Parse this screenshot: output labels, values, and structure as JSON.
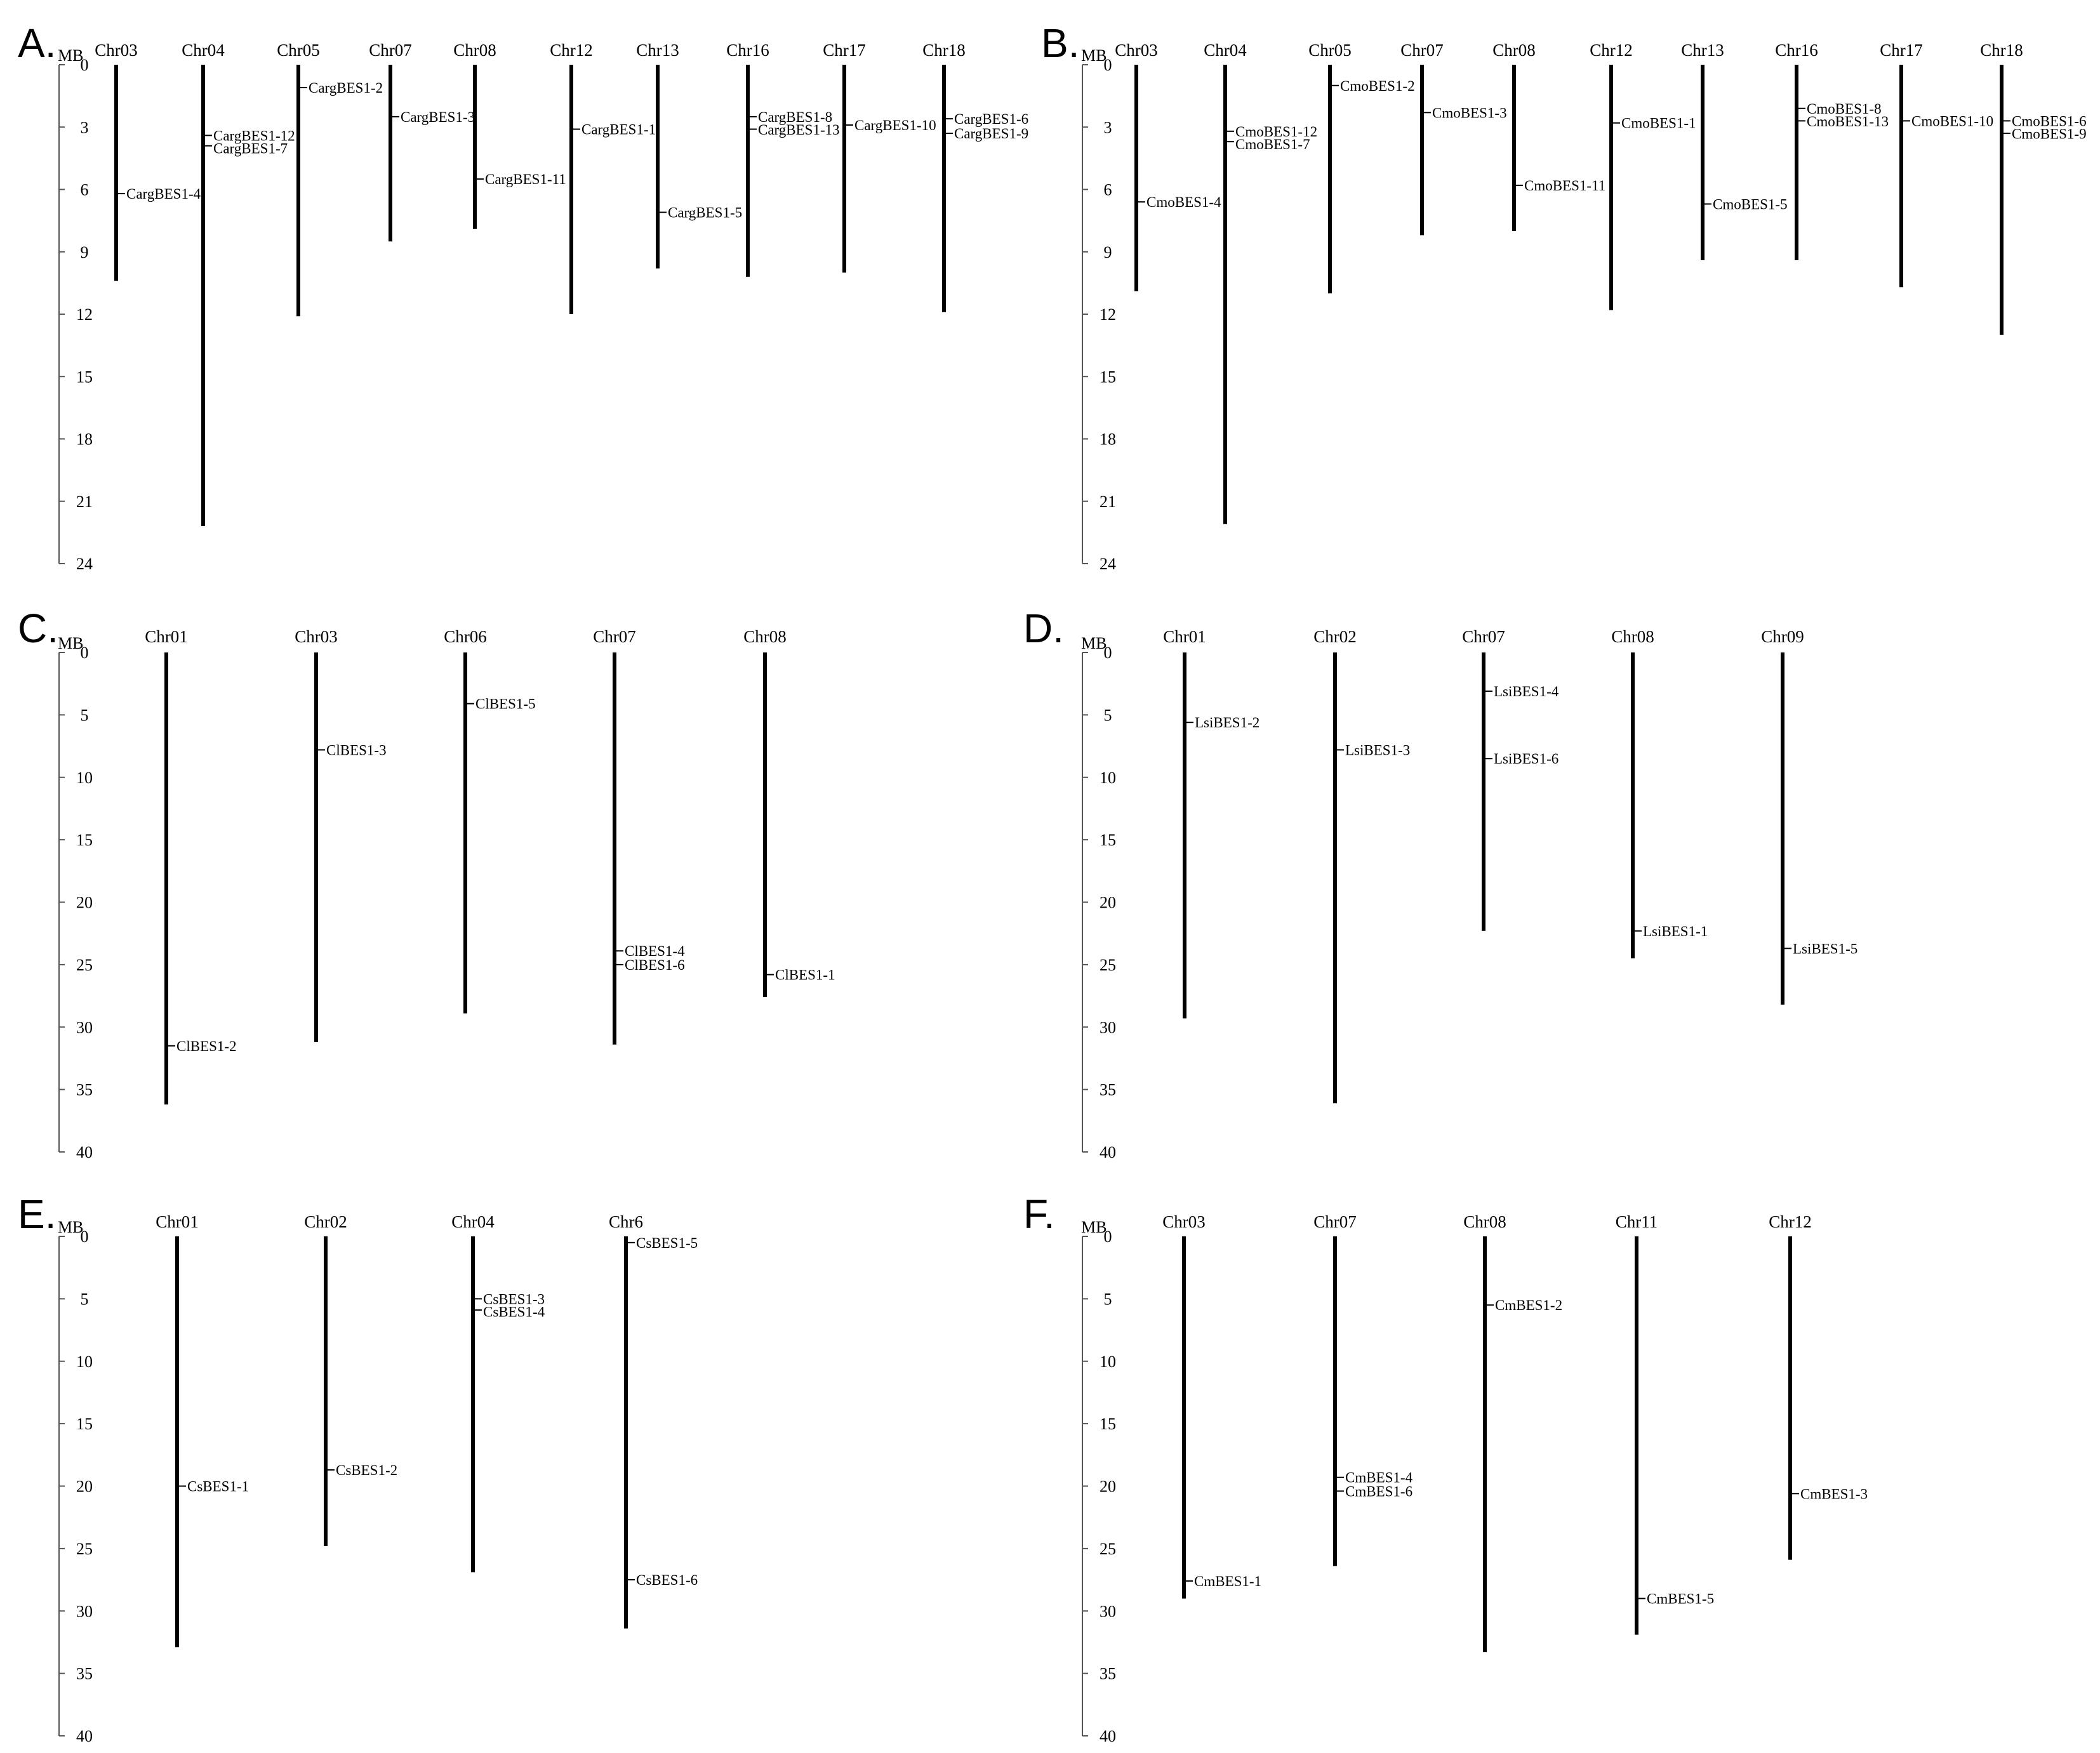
{
  "figure": {
    "panels": [
      {
        "label": "A.",
        "axis_unit": "MB",
        "axis_ticks": [
          0,
          3,
          6,
          9,
          12,
          15,
          18,
          21,
          24
        ],
        "chromosomes": [
          {
            "name": "Chr03",
            "length": 10.4,
            "genes": [
              {
                "name": "CargBES1-4",
                "pos": 6.2
              }
            ]
          },
          {
            "name": "Chr04",
            "length": 22.2,
            "genes": [
              {
                "name": "CargBES1-12",
                "pos": 3.4
              },
              {
                "name": "CargBES1-7",
                "pos": 3.9
              }
            ]
          },
          {
            "name": "Chr05",
            "length": 12.1,
            "genes": [
              {
                "name": "CargBES1-2",
                "pos": 1.1
              }
            ]
          },
          {
            "name": "Chr07",
            "length": 8.5,
            "genes": [
              {
                "name": "CargBES1-3",
                "pos": 2.5
              }
            ]
          },
          {
            "name": "Chr08",
            "length": 7.9,
            "genes": [
              {
                "name": "CargBES1-11",
                "pos": 5.5
              }
            ]
          },
          {
            "name": "Chr12",
            "length": 12.0,
            "genes": [
              {
                "name": "CargBES1-1",
                "pos": 3.1
              }
            ]
          },
          {
            "name": "Chr13",
            "length": 9.8,
            "genes": [
              {
                "name": "CargBES1-5",
                "pos": 7.1
              }
            ]
          },
          {
            "name": "Chr16",
            "length": 10.2,
            "genes": [
              {
                "name": "CargBES1-8",
                "pos": 2.5
              },
              {
                "name": "CargBES1-13",
                "pos": 3.1
              }
            ]
          },
          {
            "name": "Chr17",
            "length": 10.0,
            "genes": [
              {
                "name": "CargBES1-10",
                "pos": 2.9
              }
            ]
          },
          {
            "name": "Chr18",
            "length": 11.9,
            "genes": [
              {
                "name": "CargBES1-6",
                "pos": 2.6
              },
              {
                "name": "CargBES1-9",
                "pos": 3.3
              }
            ]
          }
        ]
      },
      {
        "label": "B.",
        "axis_unit": "MB",
        "axis_ticks": [
          0,
          3,
          6,
          9,
          12,
          15,
          18,
          21,
          24
        ],
        "chromosomes": [
          {
            "name": "Chr03",
            "length": 10.9,
            "genes": [
              {
                "name": "CmoBES1-4",
                "pos": 6.6
              }
            ]
          },
          {
            "name": "Chr04",
            "length": 22.1,
            "genes": [
              {
                "name": "CmoBES1-12",
                "pos": 3.2
              },
              {
                "name": "CmoBES1-7",
                "pos": 3.7
              }
            ]
          },
          {
            "name": "Chr05",
            "length": 11.0,
            "genes": [
              {
                "name": "CmoBES1-2",
                "pos": 1.0
              }
            ]
          },
          {
            "name": "Chr07",
            "length": 8.2,
            "genes": [
              {
                "name": "CmoBES1-3",
                "pos": 2.3
              }
            ]
          },
          {
            "name": "Chr08",
            "length": 8.0,
            "genes": [
              {
                "name": "CmoBES1-11",
                "pos": 5.8
              }
            ]
          },
          {
            "name": "Chr12",
            "length": 11.8,
            "genes": [
              {
                "name": "CmoBES1-1",
                "pos": 2.8
              }
            ]
          },
          {
            "name": "Chr13",
            "length": 9.4,
            "genes": [
              {
                "name": "CmoBES1-5",
                "pos": 6.7
              }
            ]
          },
          {
            "name": "Chr16",
            "length": 9.4,
            "genes": [
              {
                "name": "CmoBES1-8",
                "pos": 2.1
              },
              {
                "name": "CmoBES1-13",
                "pos": 2.7
              }
            ]
          },
          {
            "name": "Chr17",
            "length": 10.7,
            "genes": [
              {
                "name": "CmoBES1-10",
                "pos": 2.7
              }
            ]
          },
          {
            "name": "Chr18",
            "length": 13.0,
            "genes": [
              {
                "name": "CmoBES1-6",
                "pos": 2.7
              },
              {
                "name": "CmoBES1-9",
                "pos": 3.3
              }
            ]
          }
        ]
      },
      {
        "label": "C.",
        "axis_unit": "MB",
        "axis_ticks": [
          0,
          5,
          10,
          15,
          20,
          25,
          30,
          35,
          40
        ],
        "chromosomes": [
          {
            "name": "Chr01",
            "length": 36.2,
            "genes": [
              {
                "name": "ClBES1-2",
                "pos": 31.5
              }
            ]
          },
          {
            "name": "Chr03",
            "length": 31.2,
            "genes": [
              {
                "name": "ClBES1-3",
                "pos": 7.8
              }
            ]
          },
          {
            "name": "Chr06",
            "length": 28.9,
            "genes": [
              {
                "name": "ClBES1-5",
                "pos": 4.1
              }
            ]
          },
          {
            "name": "Chr07",
            "length": 31.4,
            "genes": [
              {
                "name": "ClBES1-4",
                "pos": 23.9
              },
              {
                "name": "ClBES1-6",
                "pos": 25.0
              }
            ]
          },
          {
            "name": "Chr08",
            "length": 27.6,
            "genes": [
              {
                "name": "ClBES1-1",
                "pos": 25.8
              }
            ]
          }
        ]
      },
      {
        "label": "D.",
        "axis_unit": "MB",
        "axis_ticks": [
          0,
          5,
          10,
          15,
          20,
          25,
          30,
          35,
          40
        ],
        "chromosomes": [
          {
            "name": "Chr01",
            "length": 29.3,
            "genes": [
              {
                "name": "LsiBES1-2",
                "pos": 5.6
              }
            ]
          },
          {
            "name": "Chr02",
            "length": 36.1,
            "genes": [
              {
                "name": "LsiBES1-3",
                "pos": 7.8
              }
            ]
          },
          {
            "name": "Chr07",
            "length": 22.3,
            "genes": [
              {
                "name": "LsiBES1-4",
                "pos": 3.1
              },
              {
                "name": "LsiBES1-6",
                "pos": 8.5
              }
            ]
          },
          {
            "name": "Chr08",
            "length": 24.5,
            "genes": [
              {
                "name": "LsiBES1-1",
                "pos": 22.3
              }
            ]
          },
          {
            "name": "Chr09",
            "length": 28.2,
            "genes": [
              {
                "name": "LsiBES1-5",
                "pos": 23.7
              }
            ]
          }
        ]
      },
      {
        "label": "E.",
        "axis_unit": "MB",
        "axis_ticks": [
          0,
          5,
          10,
          15,
          20,
          25,
          30,
          35,
          40
        ],
        "chromosomes": [
          {
            "name": "Chr01",
            "length": 32.9,
            "genes": [
              {
                "name": "CsBES1-1",
                "pos": 20.0
              }
            ]
          },
          {
            "name": "Chr02",
            "length": 24.8,
            "genes": [
              {
                "name": "CsBES1-2",
                "pos": 18.7
              }
            ]
          },
          {
            "name": "Chr04",
            "length": 26.9,
            "genes": [
              {
                "name": "CsBES1-3",
                "pos": 5.0
              },
              {
                "name": "CsBES1-4",
                "pos": 5.9
              }
            ]
          },
          {
            "name": "Chr6",
            "length": 31.4,
            "genes": [
              {
                "name": "CsBES1-5",
                "pos": 0.5
              },
              {
                "name": "CsBES1-6",
                "pos": 27.5
              }
            ]
          }
        ]
      },
      {
        "label": "F.",
        "axis_unit": "MB",
        "axis_ticks": [
          0,
          5,
          10,
          15,
          20,
          25,
          30,
          35,
          40
        ],
        "chromosomes": [
          {
            "name": "Chr03",
            "length": 29.0,
            "genes": [
              {
                "name": "CmBES1-1",
                "pos": 27.6
              }
            ]
          },
          {
            "name": "Chr07",
            "length": 26.4,
            "genes": [
              {
                "name": "CmBES1-4",
                "pos": 19.3
              },
              {
                "name": "CmBES1-6",
                "pos": 20.4
              }
            ]
          },
          {
            "name": "Chr08",
            "length": 33.3,
            "genes": [
              {
                "name": "CmBES1-2",
                "pos": 5.5
              }
            ]
          },
          {
            "name": "Chr11",
            "length": 31.9,
            "genes": [
              {
                "name": "CmBES1-5",
                "pos": 29.0
              }
            ]
          },
          {
            "name": "Chr12",
            "length": 25.9,
            "genes": [
              {
                "name": "CmBES1-3",
                "pos": 20.6
              }
            ]
          }
        ]
      }
    ]
  }
}
